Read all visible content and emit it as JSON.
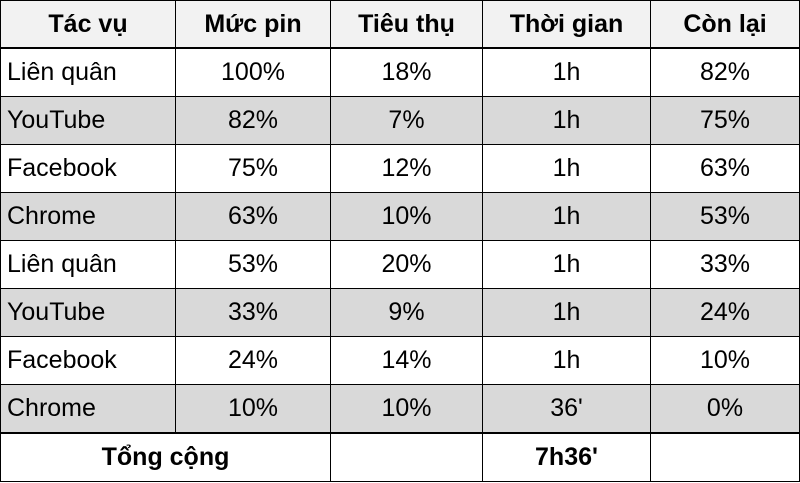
{
  "table": {
    "headers": [
      "Tác vụ",
      "Mức pin",
      "Tiêu thụ",
      "Thời gian",
      "Còn lại"
    ],
    "rows": [
      [
        "Liên quân",
        "100%",
        "18%",
        "1h",
        "82%"
      ],
      [
        "YouTube",
        "82%",
        "7%",
        "1h",
        "75%"
      ],
      [
        "Facebook",
        "75%",
        "12%",
        "1h",
        "63%"
      ],
      [
        "Chrome",
        "63%",
        "10%",
        "1h",
        "53%"
      ],
      [
        "Liên quân",
        "53%",
        "20%",
        "1h",
        "33%"
      ],
      [
        "YouTube",
        "33%",
        "9%",
        "1h",
        "24%"
      ],
      [
        "Facebook",
        "24%",
        "14%",
        "1h",
        "10%"
      ],
      [
        "Chrome",
        "10%",
        "10%",
        "36'",
        "0%"
      ]
    ],
    "footer": {
      "label": "Tổng cộng",
      "total_time": "7h36'"
    }
  },
  "colors": {
    "header_bg": "#f2f2f2",
    "shaded_row_bg": "#d9d9d9",
    "border": "#000000"
  }
}
